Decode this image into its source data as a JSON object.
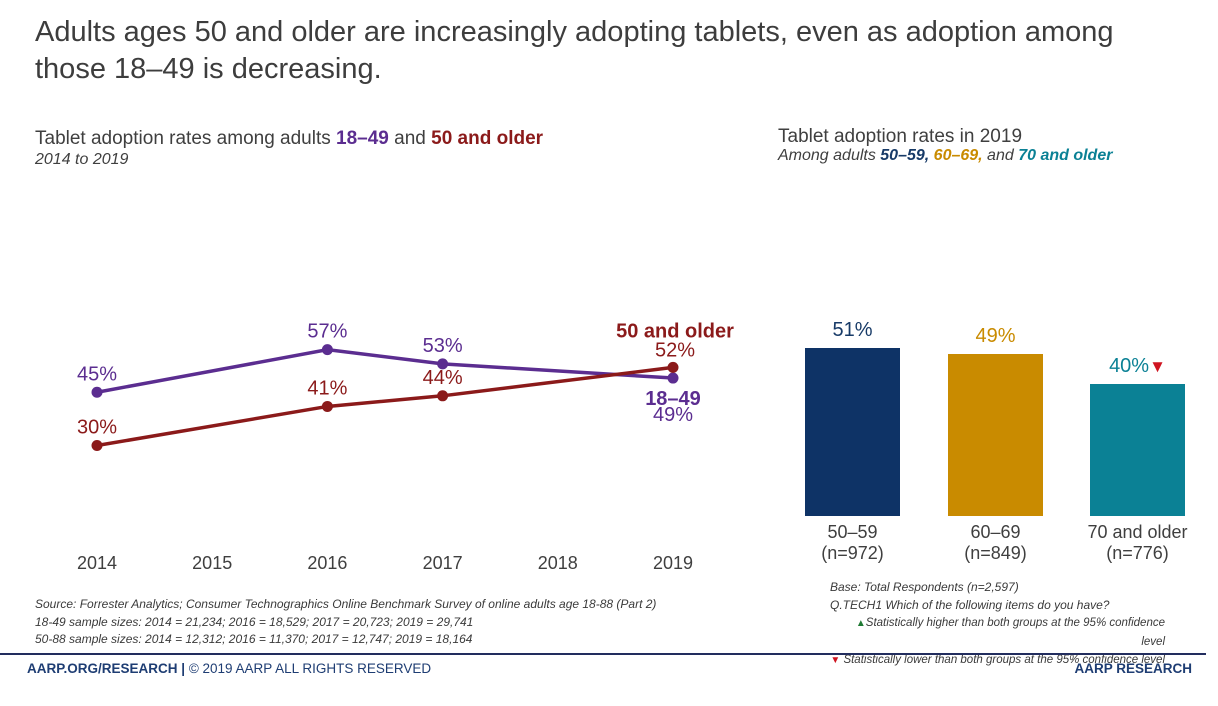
{
  "header": {
    "title": "Adults ages 50 and older are increasingly adopting tablets, even as adoption among those 18–49 is decreasing."
  },
  "left_chart": {
    "subtitle_prefix": "Tablet adoption rates among adults ",
    "group1": "18–49",
    "subtitle_and": " and ",
    "group2": "50 and older",
    "range": "2014 to 2019",
    "source_lines": [
      "Source: Forrester Analytics; Consumer Technographics Online Benchmark Survey of online adults age 18-88 (Part 2)",
      "18-49 sample sizes: 2014 = 21,234; 2016 = 18,529; 2017 = 20,723; 2019 = 29,741",
      "50-88 sample sizes: 2014 = 12,312; 2016 = 11,370; 2017 = 12,747; 2019 = 18,164"
    ]
  },
  "right_chart": {
    "title": "Tablet adoption rates in 2019",
    "subtitle_prefix": "Among adults ",
    "group1": "50–59,",
    "sep1": " ",
    "group2": "60–69,",
    "sep2": " and ",
    "group3": "70 and older",
    "base_note": "Base: Total Respondents (n=2,597)",
    "question_note": "Q.TECH1 Which of the following items do you have?",
    "legend_higher": "Statistically higher than both groups at the 95% confidence level",
    "legend_lower": " Statistically lower than both groups at the 95% confidence level"
  },
  "icons": {
    "up_triangle": "▲",
    "down_triangle": "▼"
  },
  "footer": {
    "left_site": "AARP.ORG/RESEARCH | ",
    "left_rest": "© 2019 AARP ALL RIGHTS RESERVED",
    "right": "AARP RESEARCH"
  },
  "colors": {
    "purple_18_49": "#5b2d90",
    "darkred_50_older": "#8b1a1a",
    "navy_50_59": "#0e3366",
    "gold_60_69": "#c98b00",
    "teal_70_older": "#0b8195",
    "sig_down_red": "#cf1420",
    "sig_up_green": "#1f7a33",
    "footer_navy": "#1e3d73"
  },
  "chart_data": [
    {
      "type": "line",
      "title": "Tablet adoption rates among adults 18–49 and 50 and older, 2014 to 2019",
      "x_labels": [
        "2014",
        "2015",
        "2016",
        "2017",
        "2018",
        "2019"
      ],
      "series": [
        {
          "name": "18–49",
          "color": "#5b2d90",
          "values": [
            45,
            null,
            57,
            53,
            null,
            49
          ],
          "labels": [
            "45%",
            null,
            "57%",
            "53%",
            null,
            "49%"
          ],
          "end_label_position": "below"
        },
        {
          "name": "50 and older",
          "color": "#8b1a1a",
          "values": [
            30,
            null,
            41,
            44,
            null,
            52
          ],
          "labels": [
            "30%",
            null,
            "41%",
            "44%",
            null,
            "52%"
          ],
          "end_label_position": "above"
        }
      ],
      "ylim": [
        0,
        100
      ],
      "grid": false,
      "axes_shown": false,
      "legend_position": "end-of-line labels"
    },
    {
      "type": "bar",
      "title": "Tablet adoption rates in 2019",
      "categories": [
        "50–59",
        "60–69",
        "70 and older"
      ],
      "sample_labels": [
        "(n=972)",
        "(n=849)",
        "(n=776)"
      ],
      "values": [
        51,
        49,
        40
      ],
      "value_labels": [
        "51%",
        "49%",
        "40%"
      ],
      "bar_colors": [
        "#0e3366",
        "#c98b00",
        "#0b8195"
      ],
      "label_colors": [
        "#173a67",
        "#c98b00",
        "#0b8195"
      ],
      "significance": [
        null,
        null,
        "lower"
      ],
      "ylim": [
        0,
        100
      ],
      "grid": false
    }
  ]
}
